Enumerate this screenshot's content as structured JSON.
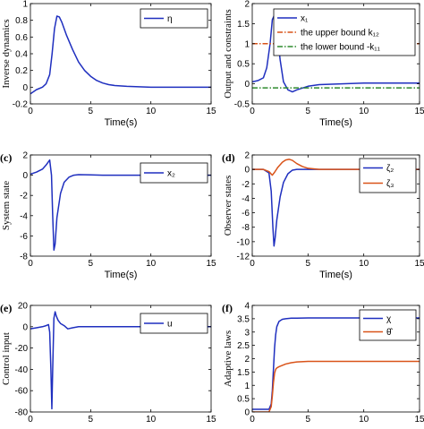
{
  "chart_data": [
    {
      "panel_label": "",
      "type": "line",
      "xlabel": "Time(s)",
      "ylabel": "Inverse dynamics",
      "xlim": [
        0,
        15
      ],
      "ylim": [
        -0.2,
        1.0
      ],
      "xticks": [
        0,
        5,
        10,
        15
      ],
      "yticks": [
        -0.2,
        0,
        0.2,
        0.4,
        0.6,
        0.8,
        1
      ],
      "ytick_labels": [
        "-0.2",
        "0",
        "0.2",
        "0.4",
        "0.6",
        "0.8",
        "1"
      ],
      "legend_position": "top-right",
      "series": [
        {
          "name": "η",
          "color": "#1f2fbf",
          "style": "solid",
          "x": [
            0,
            0.5,
            1.0,
            1.3,
            1.6,
            1.8,
            2.0,
            2.2,
            2.4,
            2.6,
            3.0,
            3.5,
            4.0,
            4.5,
            5.0,
            5.5,
            6.0,
            6.5,
            7.0,
            8.0,
            10.0,
            15.0
          ],
          "y": [
            -0.08,
            -0.03,
            0.0,
            0.04,
            0.15,
            0.4,
            0.7,
            0.85,
            0.84,
            0.78,
            0.62,
            0.45,
            0.3,
            0.2,
            0.13,
            0.08,
            0.05,
            0.03,
            0.02,
            0.01,
            0.0,
            0.0
          ]
        }
      ]
    },
    {
      "panel_label": "",
      "type": "line",
      "xlabel": "Time(s)",
      "ylabel": "Output and constraints",
      "xlim": [
        0,
        15
      ],
      "ylim": [
        -0.5,
        2.0
      ],
      "xticks": [
        0,
        5,
        10,
        15
      ],
      "yticks": [
        -0.5,
        0,
        0.5,
        1,
        1.5,
        2
      ],
      "ytick_labels": [
        "-0.5",
        "0",
        "0.5",
        "1",
        "1.5",
        "2"
      ],
      "legend_position": "top-right",
      "series": [
        {
          "name": "x₁",
          "color": "#1f2fbf",
          "style": "solid",
          "x": [
            0,
            0.5,
            1.0,
            1.3,
            1.6,
            1.8,
            2.0,
            2.2,
            2.5,
            2.8,
            3.2,
            3.6,
            4.0,
            5.0,
            6.0,
            8.0,
            10.0,
            15.0
          ],
          "y": [
            0.05,
            0.08,
            0.15,
            0.4,
            1.0,
            1.6,
            1.72,
            1.35,
            0.6,
            0.05,
            -0.15,
            -0.2,
            -0.15,
            -0.06,
            -0.02,
            0.0,
            0.02,
            0.02
          ]
        },
        {
          "name": "the upper bound k₁₂",
          "color": "#d95319",
          "style": "dashdot",
          "x": [
            0,
            15
          ],
          "y": [
            1.0,
            1.0
          ]
        },
        {
          "name": "the lower bound -k₁₁",
          "color": "#2e8b2e",
          "style": "dashdot",
          "x": [
            0,
            15
          ],
          "y": [
            -0.1,
            -0.1
          ]
        }
      ]
    },
    {
      "panel_label": "(c)",
      "type": "line",
      "xlabel": "Time(s)",
      "ylabel": "System state",
      "xlim": [
        0,
        15
      ],
      "ylim": [
        -8,
        2
      ],
      "xticks": [
        0,
        5,
        10,
        15
      ],
      "yticks": [
        -8,
        -6,
        -4,
        -2,
        0,
        2
      ],
      "ytick_labels": [
        "-8",
        "-6",
        "-4",
        "-2",
        "0",
        "2"
      ],
      "legend_position": "top-right",
      "series": [
        {
          "name": "x₂",
          "color": "#1f2fbf",
          "style": "solid",
          "x": [
            0,
            0.5,
            1.0,
            1.3,
            1.6,
            1.75,
            1.85,
            1.95,
            2.05,
            2.2,
            2.5,
            2.8,
            3.2,
            3.6,
            4.0,
            5.0,
            6.0,
            8.0,
            15.0
          ],
          "y": [
            0.1,
            0.3,
            0.6,
            1.0,
            1.5,
            0.0,
            -4.0,
            -7.4,
            -6.8,
            -4.2,
            -1.8,
            -0.7,
            -0.2,
            0.0,
            0.05,
            0.03,
            0.0,
            0.0,
            0.0
          ]
        }
      ]
    },
    {
      "panel_label": "(d)",
      "type": "line",
      "xlabel": "Time(s)",
      "ylabel": "Observer states",
      "xlim": [
        0,
        15
      ],
      "ylim": [
        -12,
        2
      ],
      "xticks": [
        0,
        5,
        10,
        15
      ],
      "yticks": [
        -12,
        -10,
        -8,
        -6,
        -4,
        -2,
        0,
        2
      ],
      "ytick_labels": [
        "-12",
        "-10",
        "-8",
        "-6",
        "-4",
        "-2",
        "0",
        "2"
      ],
      "legend_position": "top-right",
      "series": [
        {
          "name": "ζ₂",
          "color": "#1f2fbf",
          "style": "solid",
          "x": [
            0,
            1.0,
            1.5,
            1.7,
            1.85,
            1.95,
            2.05,
            2.2,
            2.5,
            2.8,
            3.2,
            3.6,
            4.0,
            5.0,
            6.0,
            8.0,
            15.0
          ],
          "y": [
            0.0,
            0.0,
            -0.5,
            -3.0,
            -8.0,
            -10.6,
            -9.5,
            -7.0,
            -3.8,
            -1.8,
            -0.6,
            -0.1,
            0.0,
            0.0,
            0.0,
            0.0,
            0.0
          ]
        },
        {
          "name": "ζ₃",
          "color": "#d95319",
          "style": "solid",
          "x": [
            0,
            1.0,
            1.5,
            1.8,
            2.0,
            2.3,
            2.7,
            3.0,
            3.3,
            3.6,
            4.0,
            4.5,
            5.0,
            6.0,
            8.0,
            15.0
          ],
          "y": [
            0.0,
            0.0,
            -0.3,
            -0.8,
            -0.4,
            0.3,
            1.0,
            1.3,
            1.4,
            1.25,
            0.8,
            0.4,
            0.15,
            0.0,
            0.0,
            0.0
          ]
        }
      ]
    },
    {
      "panel_label": "(e)",
      "type": "line",
      "xlabel": "Time(s)",
      "ylabel": "Control input",
      "xlim": [
        0,
        15
      ],
      "ylim": [
        -80,
        20
      ],
      "xticks": [
        0,
        5,
        10,
        15
      ],
      "yticks": [
        -80,
        -60,
        -40,
        -20,
        0,
        20
      ],
      "ytick_labels": [
        "-80",
        "-60",
        "-40",
        "-20",
        "0",
        "20"
      ],
      "legend_position": "top-right",
      "series": [
        {
          "name": "u",
          "color": "#1f2fbf",
          "style": "solid",
          "x": [
            0,
            0.5,
            1.0,
            1.3,
            1.5,
            1.6,
            1.7,
            1.78,
            1.85,
            1.95,
            2.05,
            2.15,
            2.3,
            2.5,
            2.8,
            3.1,
            3.5,
            4.0,
            5.0,
            6.0,
            8.0,
            15.0
          ],
          "y": [
            -2,
            -1,
            0,
            1,
            2,
            -5,
            -40,
            -77,
            -40,
            8,
            14,
            10,
            6,
            3,
            1,
            -2,
            -1,
            0,
            0,
            0,
            0,
            0
          ]
        }
      ]
    },
    {
      "panel_label": "(f)",
      "type": "line",
      "xlabel": "Time(s)",
      "ylabel": "Adaptive laws",
      "xlim": [
        0,
        15
      ],
      "ylim": [
        0,
        4
      ],
      "xticks": [
        0,
        5,
        10,
        15
      ],
      "yticks": [
        0,
        0.5,
        1,
        1.5,
        2,
        2.5,
        3,
        3.5,
        4
      ],
      "ytick_labels": [
        "0",
        "0.5",
        "1",
        "1.5",
        "2",
        "2.5",
        "3",
        "3.5",
        "4"
      ],
      "legend_position": "top-right",
      "series": [
        {
          "name": "χ",
          "color": "#1f2fbf",
          "style": "solid",
          "x": [
            0,
            1.0,
            1.5,
            1.7,
            1.8,
            1.9,
            2.0,
            2.1,
            2.2,
            2.4,
            2.7,
            3.0,
            3.5,
            4.0,
            5.0,
            7.0,
            10.0,
            15.0
          ],
          "y": [
            0.1,
            0.1,
            0.1,
            0.3,
            0.8,
            1.6,
            2.4,
            2.9,
            3.2,
            3.4,
            3.48,
            3.5,
            3.52,
            3.52,
            3.53,
            3.53,
            3.53,
            3.53
          ]
        },
        {
          "name": "θ̂",
          "color": "#d95319",
          "style": "solid",
          "x": [
            0,
            1.0,
            1.5,
            1.7,
            1.8,
            1.9,
            2.0,
            2.1,
            2.2,
            2.4,
            2.7,
            3.0,
            3.5,
            4.0,
            5.0,
            7.0,
            10.0,
            15.0
          ],
          "y": [
            0.0,
            0.0,
            0.0,
            0.2,
            0.6,
            1.1,
            1.45,
            1.6,
            1.65,
            1.7,
            1.75,
            1.8,
            1.85,
            1.88,
            1.9,
            1.9,
            1.9,
            1.9
          ]
        }
      ]
    }
  ]
}
